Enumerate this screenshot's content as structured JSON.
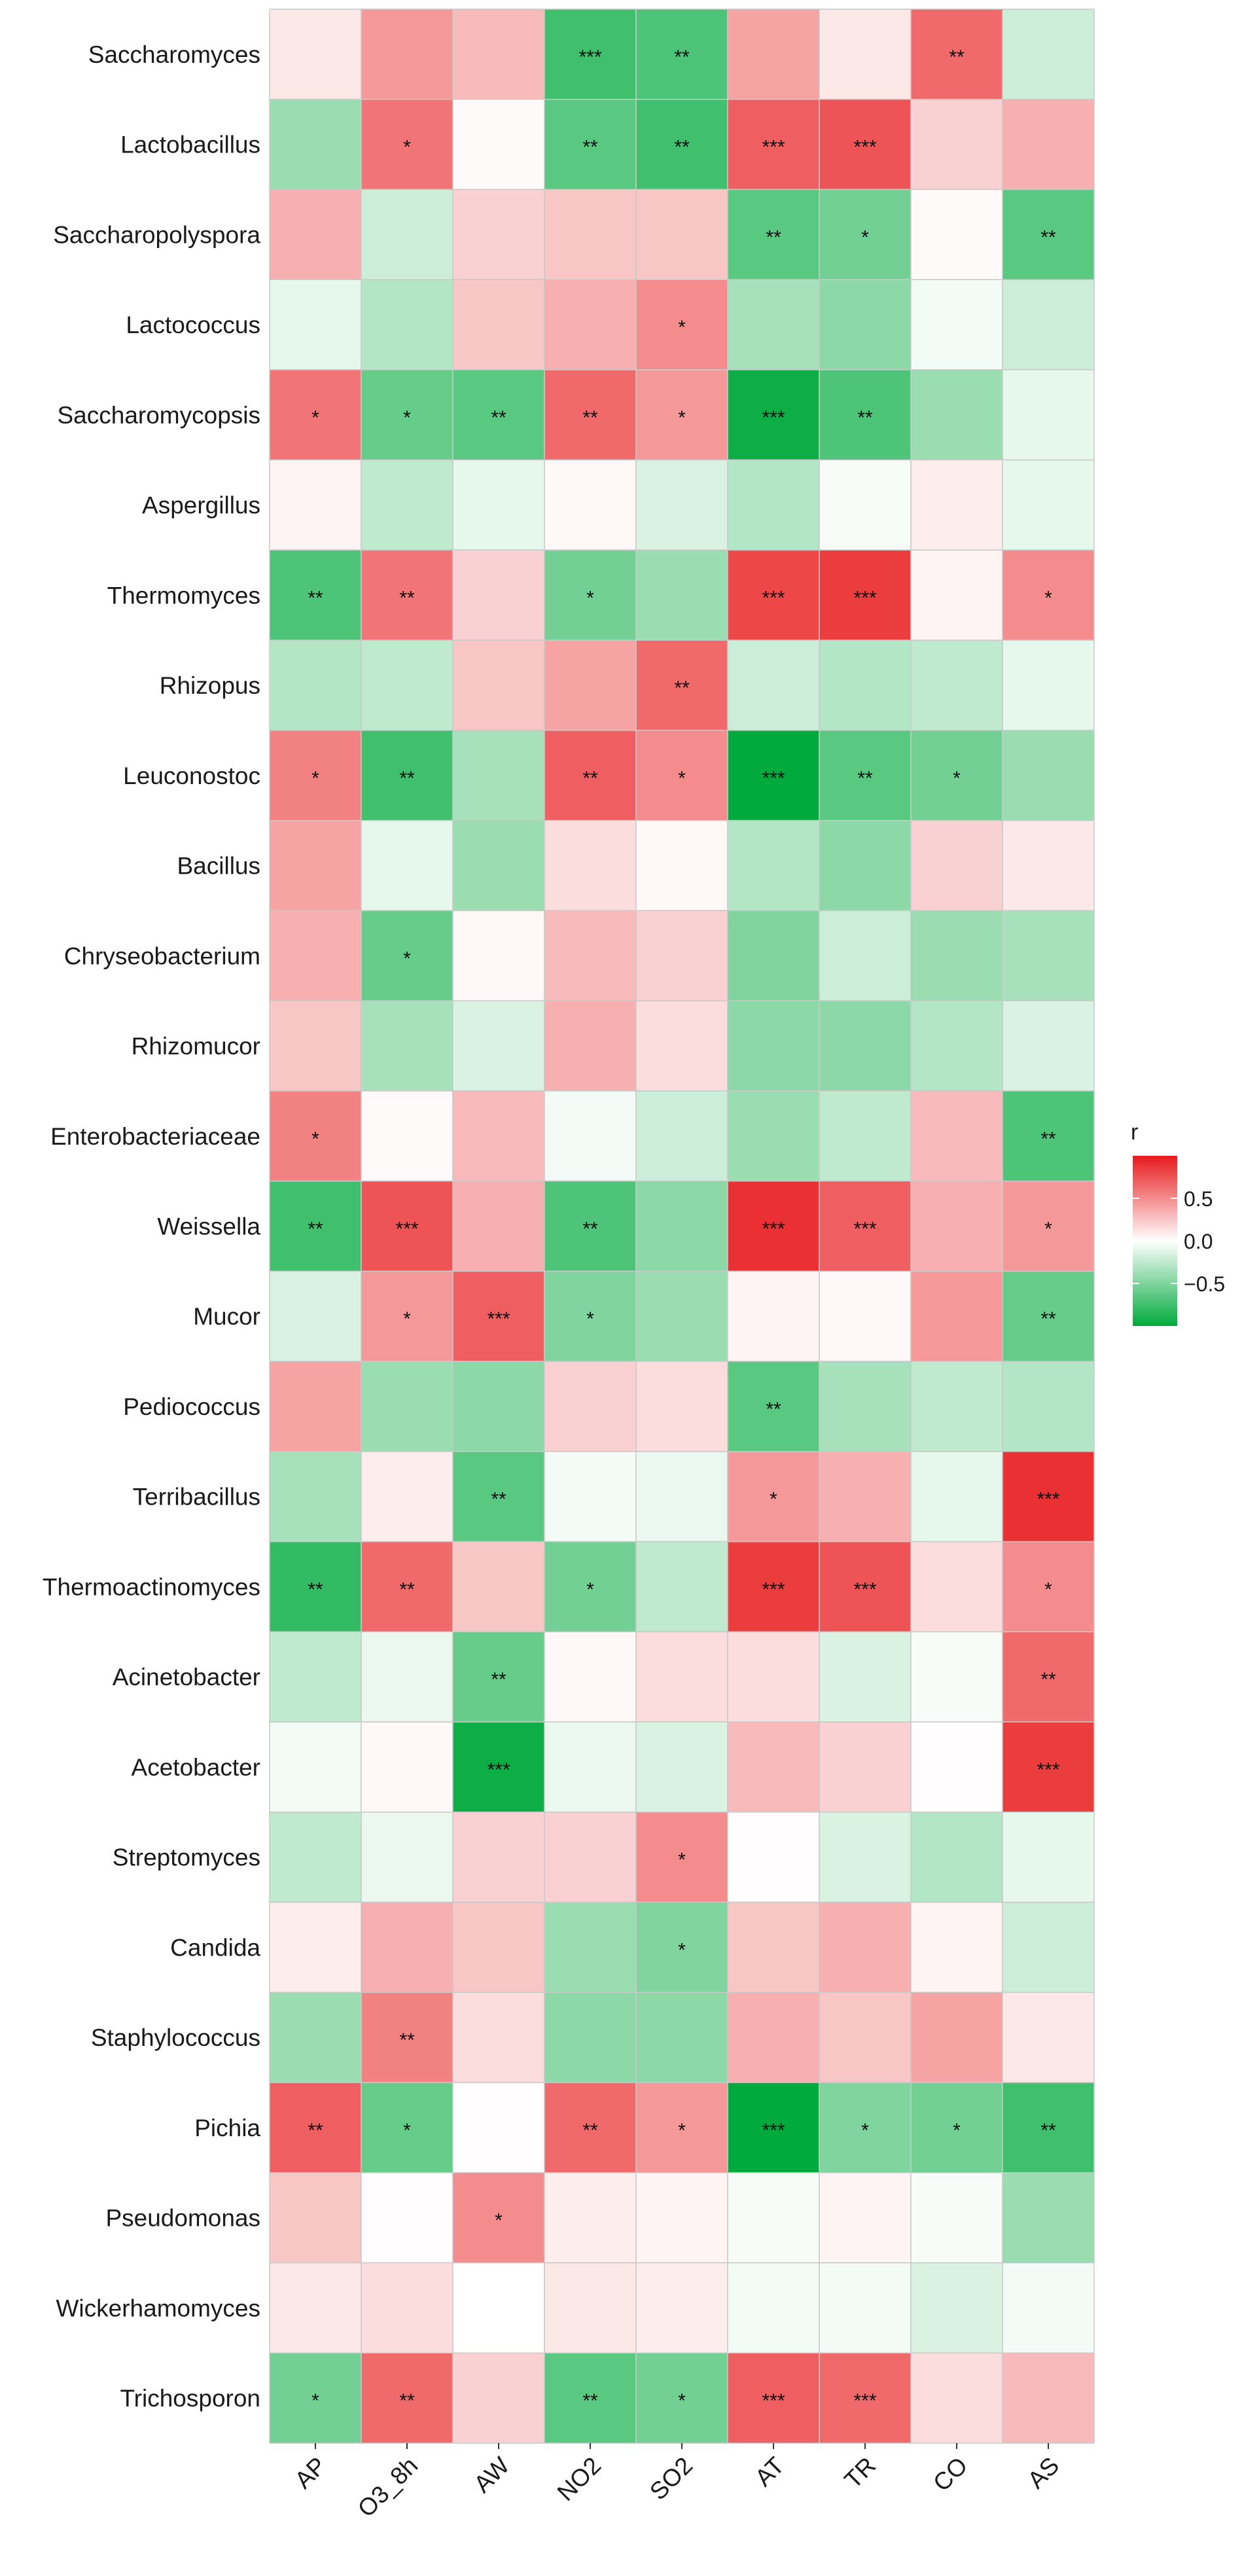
{
  "chart_data": {
    "type": "heatmap",
    "title": "",
    "xlabel": "",
    "ylabel": "",
    "x_categories": [
      "AP",
      "O3_8h",
      "AW",
      "NO2",
      "SO2",
      "AT",
      "TR",
      "CO",
      "AS"
    ],
    "y_categories": [
      "Saccharomyces",
      "Lactobacillus",
      "Saccharopolyspora",
      "Lactococcus",
      "Saccharomycopsis",
      "Aspergillus",
      "Thermomyces",
      "Rhizopus",
      "Leuconostoc",
      "Bacillus",
      "Chryseobacterium",
      "Rhizomucor",
      "Enterobacteriaceae",
      "Weissella",
      "Mucor",
      "Pediococcus",
      "Terribacillus",
      "Thermoactinomyces",
      "Acinetobacter",
      "Acetobacter",
      "Streptomyces",
      "Candida",
      "Staphylococcus",
      "Pichia",
      "Pseudomonas",
      "Wickerhamomyces",
      "Trichosporon"
    ],
    "values": [
      [
        0.1,
        0.45,
        0.3,
        -0.75,
        -0.7,
        0.4,
        0.1,
        0.65,
        -0.2
      ],
      [
        -0.4,
        0.6,
        0.02,
        -0.65,
        -0.75,
        0.7,
        0.75,
        0.2,
        0.35
      ],
      [
        0.35,
        -0.2,
        0.2,
        0.25,
        0.25,
        -0.65,
        -0.55,
        0.02,
        -0.65
      ],
      [
        -0.1,
        -0.3,
        0.25,
        0.35,
        0.5,
        -0.35,
        -0.45,
        -0.05,
        -0.2
      ],
      [
        0.6,
        -0.6,
        -0.65,
        0.65,
        0.45,
        -0.95,
        -0.7,
        -0.4,
        -0.1
      ],
      [
        0.05,
        -0.25,
        -0.1,
        0.03,
        -0.15,
        -0.3,
        -0.03,
        0.08,
        -0.1
      ],
      [
        -0.7,
        0.6,
        0.2,
        -0.55,
        -0.4,
        0.8,
        0.85,
        0.05,
        0.5
      ],
      [
        -0.3,
        -0.25,
        0.25,
        0.4,
        0.65,
        -0.2,
        -0.3,
        -0.25,
        -0.1
      ],
      [
        0.55,
        -0.75,
        -0.35,
        0.7,
        0.5,
        -1.0,
        -0.65,
        -0.55,
        -0.4
      ],
      [
        0.4,
        -0.1,
        -0.4,
        0.15,
        0.03,
        -0.3,
        -0.45,
        0.2,
        0.1
      ],
      [
        0.35,
        -0.6,
        0.03,
        0.3,
        0.2,
        -0.5,
        -0.2,
        -0.4,
        -0.35
      ],
      [
        0.25,
        -0.35,
        -0.15,
        0.35,
        0.15,
        -0.45,
        -0.45,
        -0.3,
        -0.15
      ],
      [
        0.55,
        0.02,
        0.3,
        -0.05,
        -0.2,
        -0.4,
        -0.25,
        0.3,
        -0.7
      ],
      [
        -0.75,
        0.75,
        0.35,
        -0.7,
        -0.45,
        0.9,
        0.7,
        0.35,
        0.45
      ],
      [
        -0.15,
        0.45,
        0.7,
        -0.5,
        -0.4,
        0.05,
        0.03,
        0.45,
        -0.6
      ],
      [
        0.4,
        -0.4,
        -0.45,
        0.2,
        0.15,
        -0.65,
        -0.35,
        -0.25,
        -0.3
      ],
      [
        -0.35,
        0.08,
        -0.65,
        -0.05,
        -0.08,
        0.45,
        0.35,
        -0.1,
        0.9
      ],
      [
        -0.8,
        0.65,
        0.25,
        -0.55,
        -0.25,
        0.85,
        0.75,
        0.15,
        0.5
      ],
      [
        -0.25,
        -0.08,
        -0.6,
        0.03,
        0.15,
        0.15,
        -0.15,
        -0.03,
        0.65
      ],
      [
        -0.05,
        0.03,
        -0.95,
        -0.08,
        -0.15,
        0.3,
        0.2,
        0.01,
        0.85
      ],
      [
        -0.25,
        -0.08,
        0.2,
        0.2,
        0.5,
        0.01,
        -0.15,
        -0.3,
        -0.1
      ],
      [
        0.08,
        0.35,
        0.25,
        -0.4,
        -0.5,
        0.25,
        0.35,
        0.05,
        -0.2
      ],
      [
        -0.4,
        0.55,
        0.15,
        -0.45,
        -0.45,
        0.35,
        0.25,
        0.4,
        0.1
      ],
      [
        0.7,
        -0.6,
        0.01,
        0.65,
        0.45,
        -1.0,
        -0.5,
        -0.55,
        -0.75
      ],
      [
        0.25,
        0.01,
        0.5,
        0.08,
        0.05,
        -0.03,
        0.05,
        -0.03,
        -0.4
      ],
      [
        0.1,
        0.15,
        0.0,
        0.1,
        0.08,
        -0.05,
        -0.05,
        -0.15,
        -0.05
      ],
      [
        -0.55,
        0.65,
        0.2,
        -0.65,
        -0.55,
        0.7,
        0.65,
        0.15,
        0.3
      ]
    ],
    "significance": [
      [
        "",
        "",
        "",
        "***",
        "**",
        "",
        "",
        "**",
        ""
      ],
      [
        "",
        "*",
        "",
        "**",
        "**",
        "***",
        "***",
        "",
        ""
      ],
      [
        "",
        "",
        "",
        "",
        "",
        "**",
        "*",
        "",
        "**"
      ],
      [
        "",
        "",
        "",
        "",
        "*",
        "",
        "",
        "",
        ""
      ],
      [
        "*",
        "*",
        "**",
        "**",
        "*",
        "***",
        "**",
        "",
        ""
      ],
      [
        "",
        "",
        "",
        "",
        "",
        "",
        "",
        "",
        ""
      ],
      [
        "**",
        "**",
        "",
        "*",
        "",
        "***",
        "***",
        "",
        "*"
      ],
      [
        "",
        "",
        "",
        "",
        "**",
        "",
        "",
        "",
        ""
      ],
      [
        "*",
        "**",
        "",
        "**",
        "*",
        "***",
        "**",
        "*",
        ""
      ],
      [
        "",
        "",
        "",
        "",
        "",
        "",
        "",
        "",
        ""
      ],
      [
        "",
        "*",
        "",
        "",
        "",
        "",
        "",
        "",
        ""
      ],
      [
        "",
        "",
        "",
        "",
        "",
        "",
        "",
        "",
        ""
      ],
      [
        "*",
        "",
        "",
        "",
        "",
        "",
        "",
        "",
        "**"
      ],
      [
        "**",
        "***",
        "",
        "**",
        "",
        "***",
        "***",
        "",
        "*"
      ],
      [
        "",
        "*",
        "***",
        "*",
        "",
        "",
        "",
        "",
        "**"
      ],
      [
        "",
        "",
        "",
        "",
        "",
        "**",
        "",
        "",
        ""
      ],
      [
        "",
        "",
        "**",
        "",
        "",
        "*",
        "",
        "",
        "***"
      ],
      [
        "**",
        "**",
        "",
        "*",
        "",
        "***",
        "***",
        "",
        "*"
      ],
      [
        "",
        "",
        "**",
        "",
        "",
        "",
        "",
        "",
        "**"
      ],
      [
        "",
        "",
        "***",
        "",
        "",
        "",
        "",
        "",
        "***"
      ],
      [
        "",
        "",
        "",
        "",
        "*",
        "",
        "",
        "",
        ""
      ],
      [
        "",
        "",
        "",
        "",
        "*",
        "",
        "",
        "",
        ""
      ],
      [
        "",
        "**",
        "",
        "",
        "",
        "",
        "",
        "",
        ""
      ],
      [
        "**",
        "*",
        "",
        "**",
        "*",
        "***",
        "*",
        "*",
        "**"
      ],
      [
        "",
        "",
        "*",
        "",
        "",
        "",
        "",
        "",
        ""
      ],
      [
        "",
        "",
        "",
        "",
        "",
        "",
        "",
        "",
        ""
      ],
      [
        "*",
        "**",
        "",
        "**",
        "*",
        "***",
        "***",
        "",
        ""
      ]
    ],
    "color_scale": {
      "low_color": "#00aa3c",
      "mid_color": "#ffffff",
      "high_color": "#e8191c",
      "domain": [
        -1,
        0,
        1
      ]
    },
    "legend": {
      "title": "r",
      "ticks": [
        0.5,
        0.0,
        -0.5
      ],
      "tick_labels": [
        "0.5",
        "0.0",
        "−0.5"
      ],
      "position": "right"
    }
  }
}
